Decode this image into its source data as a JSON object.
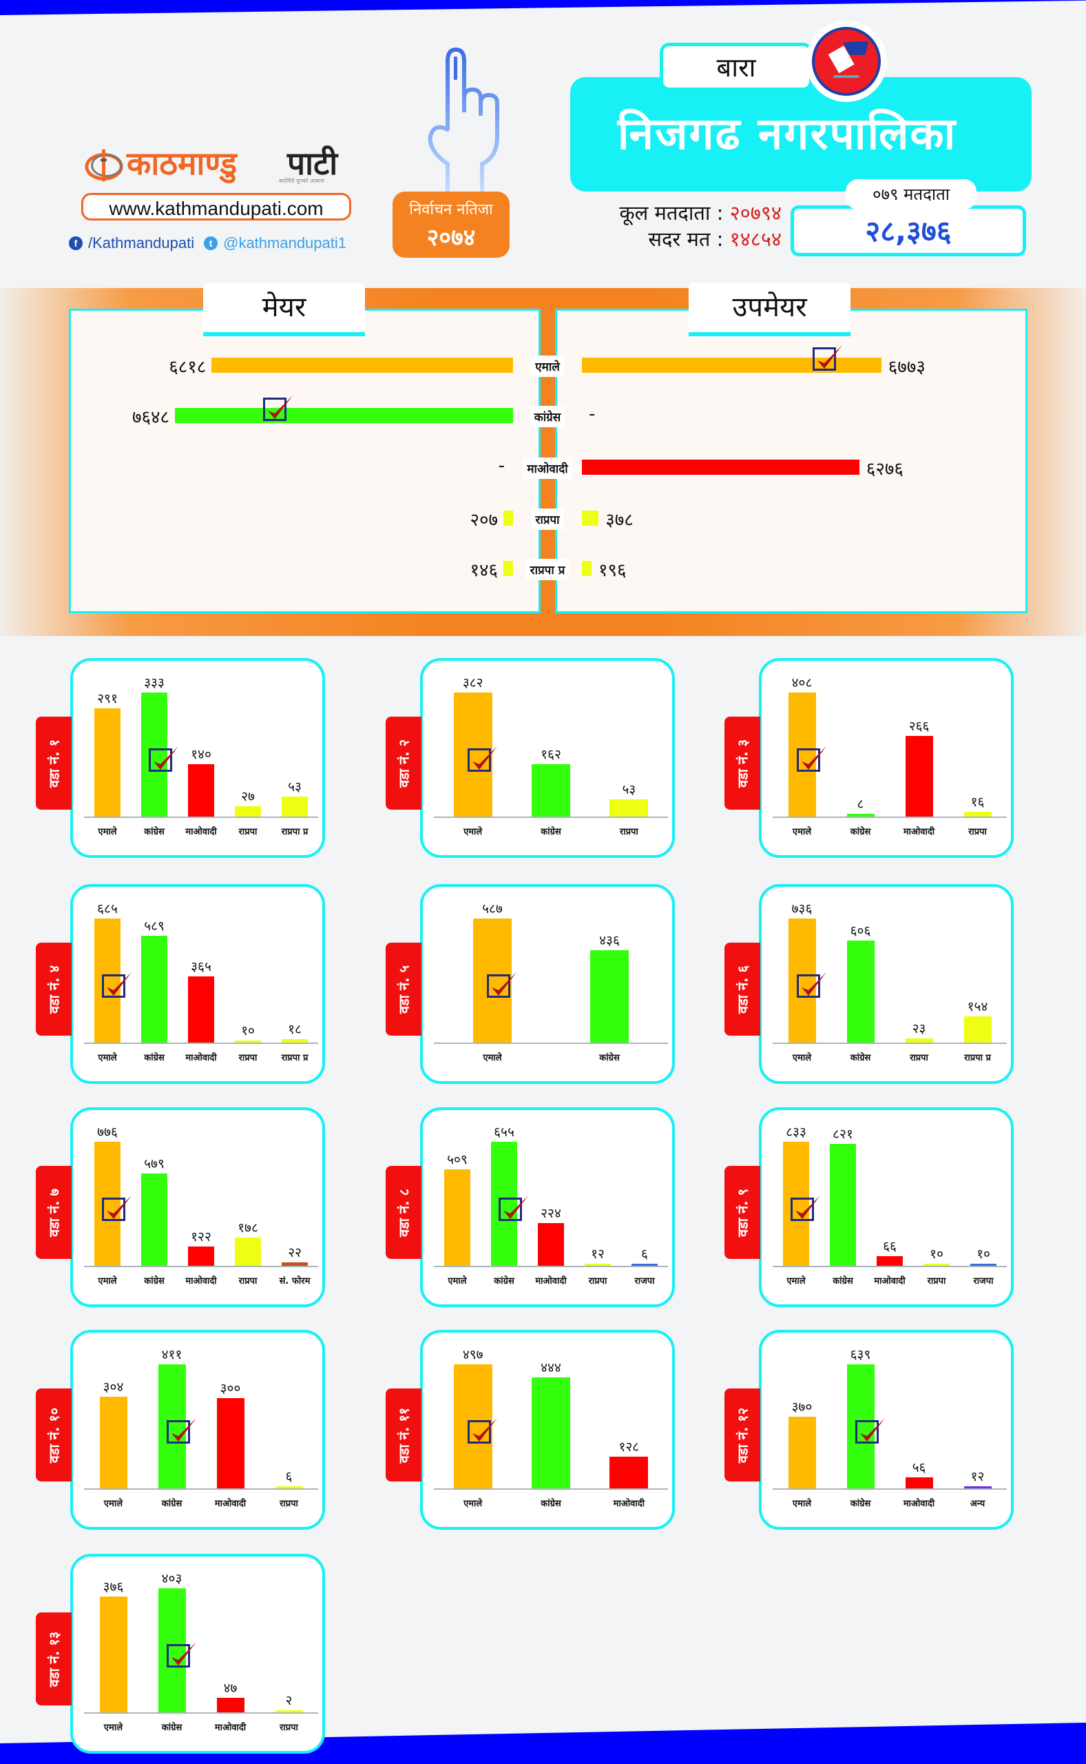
{
  "header": {
    "brand_part1": "काठमाण्डु",
    "brand_part2": "पाटी",
    "tagline": "बदलिँदो युगको आवाज",
    "website": "www.kathmandupati.com",
    "facebook": "/Kathmandupati",
    "twitter": "@kathmandupati1",
    "badge_line1": "निर्वाचन नतिजा",
    "badge_line2": "२०७४",
    "district": "बारा",
    "municipality": "निजगढ नगरपालिका",
    "total_voters_label": "कूल मतदाता :",
    "total_voters_value": "२०७९४",
    "valid_votes_label": "सदर मत :",
    "valid_votes_value": "१४८५४",
    "voters_079_label": "०७९ मतदाता",
    "voters_079_value": "२८,३७६"
  },
  "colors": {
    "एमाले": "#ffba00",
    "कांग्रेस": "#33ff0d",
    "माओवादी": "#ff0000",
    "राप्रपा": "#eeff14",
    "राप्रपा प्र": "#eeff14",
    "राजपा": "#3d6ae0",
    "सं. फोरम": "#c9501e",
    "अन्य": "#6a2cf0"
  },
  "chart_data": [
    {
      "type": "bar",
      "orientation": "horizontal-butterfly",
      "title": "मेयर / उपमेयर",
      "left_title": "मेयर",
      "right_title": "उपमेयर",
      "categories": [
        "एमाले",
        "कांग्रेस",
        "माओवादी",
        "राप्रपा",
        "राप्रपा प्र"
      ],
      "series": [
        {
          "name": "मेयर",
          "values": [
            6818,
            7648,
            null,
            207,
            146
          ],
          "labels": [
            "६८१८",
            "७६४८",
            "-",
            "२०७",
            "१४६"
          ],
          "winner": "कांग्रेस"
        },
        {
          "name": "उपमेयर",
          "values": [
            6773,
            null,
            6276,
            378,
            196
          ],
          "labels": [
            "६७७३",
            "-",
            "६२७६",
            "३७८",
            "१९६"
          ],
          "winner": "एमाले"
        }
      ]
    },
    {
      "type": "bar",
      "title": "वडा नं. १",
      "categories": [
        "एमाले",
        "कांग्रेस",
        "माओवादी",
        "राप्रपा",
        "राप्रपा प्र"
      ],
      "values": [
        291,
        333,
        140,
        27,
        53
      ],
      "labels": [
        "२९१",
        "३३३",
        "१४०",
        "२७",
        "५३"
      ],
      "winner": "कांग्रेस"
    },
    {
      "type": "bar",
      "title": "वडा नं. २",
      "categories": [
        "एमाले",
        "कांग्रेस",
        "राप्रपा"
      ],
      "values": [
        382,
        162,
        53
      ],
      "labels": [
        "३८२",
        "१६२",
        "५३"
      ],
      "winner": "एमाले"
    },
    {
      "type": "bar",
      "title": "वडा नं. ३",
      "categories": [
        "एमाले",
        "कांग्रेस",
        "माओवादी",
        "राप्रपा"
      ],
      "values": [
        408,
        8,
        266,
        16
      ],
      "labels": [
        "४०८",
        "८",
        "२६६",
        "१६"
      ],
      "winner": "एमाले"
    },
    {
      "type": "bar",
      "title": "वडा नं. ४",
      "categories": [
        "एमाले",
        "कांग्रेस",
        "माओवादी",
        "राप्रपा",
        "राप्रपा प्र"
      ],
      "values": [
        685,
        589,
        365,
        10,
        18
      ],
      "labels": [
        "६८५",
        "५८९",
        "३६५",
        "१०",
        "१८"
      ],
      "winner": "एमाले"
    },
    {
      "type": "bar",
      "title": "वडा नं. ५",
      "categories": [
        "एमाले",
        "कांग्रेस"
      ],
      "values": [
        587,
        436
      ],
      "labels": [
        "५८७",
        "४३६"
      ],
      "winner": "एमाले"
    },
    {
      "type": "bar",
      "title": "वडा नं. ६",
      "categories": [
        "एमाले",
        "कांग्रेस",
        "राप्रपा",
        "राप्रपा प्र"
      ],
      "values": [
        736,
        606,
        23,
        154
      ],
      "labels": [
        "७३६",
        "६०६",
        "२३",
        "१५४"
      ],
      "winner": "एमाले"
    },
    {
      "type": "bar",
      "title": "वडा नं. ७",
      "categories": [
        "एमाले",
        "कांग्रेस",
        "माओवादी",
        "राप्रपा",
        "सं. फोरम"
      ],
      "values": [
        776,
        579,
        122,
        178,
        22
      ],
      "labels": [
        "७७६",
        "५७९",
        "१२२",
        "१७८",
        "२२"
      ],
      "winner": "एमाले"
    },
    {
      "type": "bar",
      "title": "वडा नं. ८",
      "categories": [
        "एमाले",
        "कांग्रेस",
        "माओवादी",
        "राप्रपा",
        "राजपा"
      ],
      "values": [
        509,
        655,
        224,
        12,
        6
      ],
      "labels": [
        "५०९",
        "६५५",
        "२२४",
        "१२",
        "६"
      ],
      "winner": "कांग्रेस"
    },
    {
      "type": "bar",
      "title": "वडा नं. ९",
      "categories": [
        "एमाले",
        "कांग्रेस",
        "माओवादी",
        "राप्रपा",
        "राजपा"
      ],
      "values": [
        833,
        821,
        66,
        10,
        10
      ],
      "labels": [
        "८३३",
        "८२१",
        "६६",
        "१०",
        "१०"
      ],
      "winner": "एमाले"
    },
    {
      "type": "bar",
      "title": "वडा नं. १०",
      "categories": [
        "एमाले",
        "कांग्रेस",
        "माओवादी",
        "राप्रपा"
      ],
      "values": [
        304,
        411,
        300,
        6
      ],
      "labels": [
        "३०४",
        "४११",
        "३००",
        "६"
      ],
      "winner": "कांग्रेस"
    },
    {
      "type": "bar",
      "title": "वडा नं. ११",
      "categories": [
        "एमाले",
        "कांग्रेस",
        "माओवादी"
      ],
      "values": [
        497,
        444,
        128
      ],
      "labels": [
        "४९७",
        "४४४",
        "१२८"
      ],
      "winner": "एमाले"
    },
    {
      "type": "bar",
      "title": "वडा नं. १२",
      "categories": [
        "एमाले",
        "कांग्रेस",
        "माओवादी",
        "अन्य"
      ],
      "values": [
        370,
        639,
        56,
        12
      ],
      "labels": [
        "३७०",
        "६३९",
        "५६",
        "१२"
      ],
      "winner": "कांग्रेस"
    },
    {
      "type": "bar",
      "title": "वडा नं. १३",
      "categories": [
        "एमाले",
        "कांग्रेस",
        "माओवादी",
        "राप्रपा"
      ],
      "values": [
        376,
        403,
        47,
        2
      ],
      "labels": [
        "३७६",
        "४०३",
        "४७",
        "२"
      ],
      "winner": "कांग्रेस"
    }
  ]
}
